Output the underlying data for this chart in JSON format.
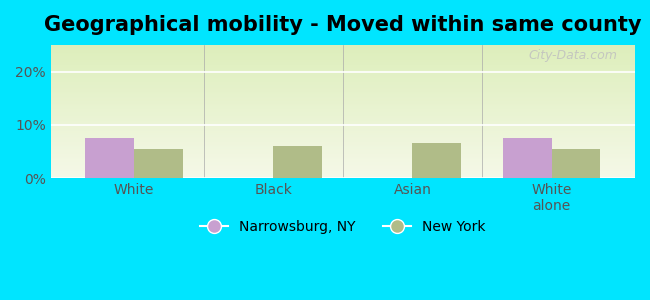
{
  "title": "Geographical mobility - Moved within same county",
  "categories": [
    "White",
    "Black",
    "Asian",
    "White\nalone"
  ],
  "narrowsburg_values": [
    7.5,
    0,
    0,
    7.5
  ],
  "newyork_values": [
    5.5,
    6.0,
    6.5,
    5.5
  ],
  "narrowsburg_color": "#c8a0d0",
  "newyork_color": "#b0bc88",
  "ylim": [
    0,
    25
  ],
  "yticks": [
    0,
    10,
    20
  ],
  "yticklabels": [
    "0%",
    "10%",
    "20%"
  ],
  "background_top": "#ddeebb",
  "background_bottom": "#f5f8e8",
  "figure_bg": "#00e5ff",
  "legend_labels": [
    "Narrowsburg, NY",
    "New York"
  ],
  "bar_width": 0.35,
  "title_fontsize": 15,
  "tick_fontsize": 10
}
